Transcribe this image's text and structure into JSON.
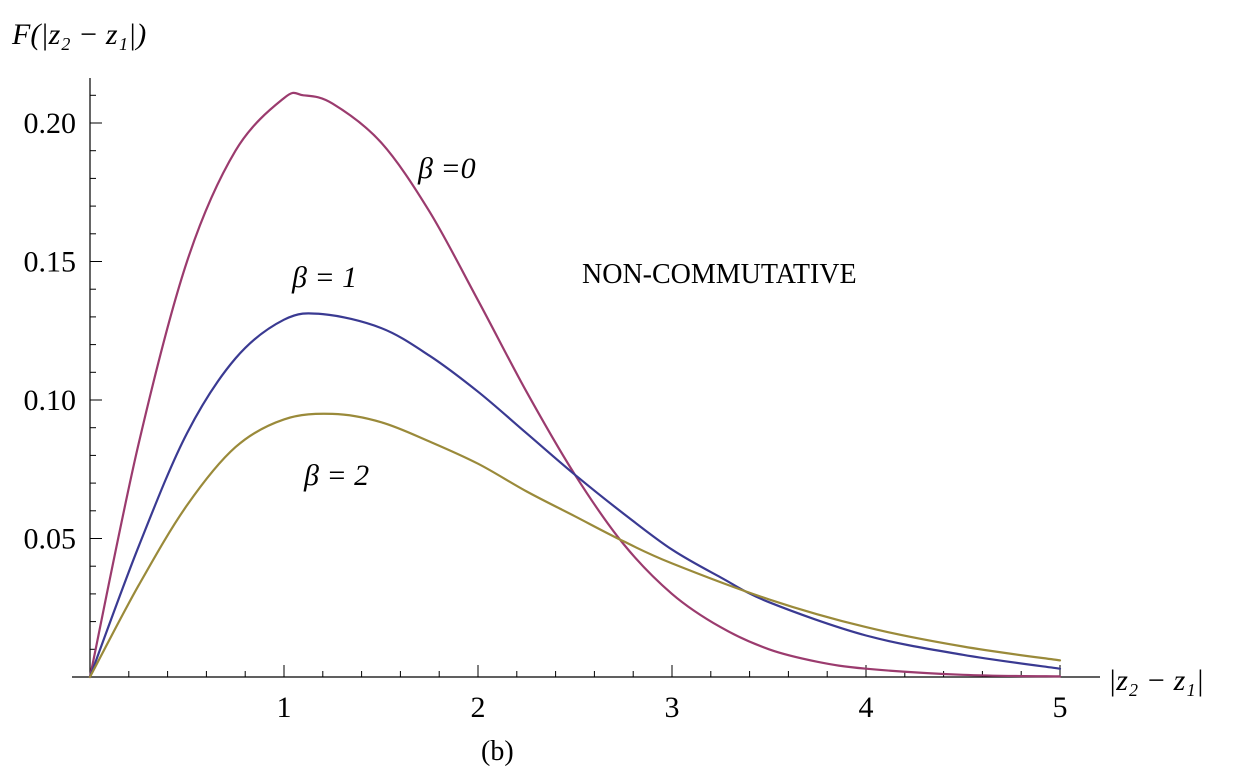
{
  "chart_data": {
    "type": "line",
    "ylabel": "F(|z₂ − z₁|)",
    "xlabel": "|z₂ − z₁|",
    "caption": "(b)",
    "annotation": "NON-COMMUTATIVE",
    "xlim": [
      0,
      5
    ],
    "ylim": [
      0,
      0.22
    ],
    "x_ticks": [
      1,
      2,
      3,
      4,
      5
    ],
    "x_tick_labels": [
      "1",
      "2",
      "3",
      "4",
      "5"
    ],
    "y_ticks": [
      0.05,
      0.1,
      0.15,
      0.2
    ],
    "y_tick_labels": [
      "0.05",
      "0.10",
      "0.15",
      "0.20"
    ],
    "grid": false,
    "series": [
      {
        "name": "β =0",
        "color": "#9b3b6e",
        "x": [
          0,
          0.25,
          0.5,
          0.75,
          1.0,
          1.1,
          1.25,
          1.5,
          1.75,
          2.0,
          2.25,
          2.5,
          2.75,
          3.0,
          3.25,
          3.5,
          3.75,
          4.0,
          4.5,
          5.0
        ],
        "y": [
          0,
          0.084,
          0.15,
          0.19,
          0.209,
          0.21,
          0.207,
          0.193,
          0.168,
          0.136,
          0.103,
          0.073,
          0.048,
          0.03,
          0.018,
          0.01,
          0.0055,
          0.003,
          0.0008,
          0.0002
        ]
      },
      {
        "name": "β = 1",
        "color": "#3a3a92",
        "x": [
          0,
          0.25,
          0.5,
          0.75,
          1.0,
          1.2,
          1.5,
          1.75,
          2.0,
          2.25,
          2.5,
          2.75,
          3.0,
          3.25,
          3.5,
          4.0,
          4.5,
          5.0
        ],
        "y": [
          0,
          0.047,
          0.088,
          0.115,
          0.129,
          0.131,
          0.126,
          0.116,
          0.103,
          0.088,
          0.073,
          0.059,
          0.046,
          0.036,
          0.027,
          0.015,
          0.008,
          0.003
        ]
      },
      {
        "name": "β = 2",
        "color": "#9a8a3a",
        "x": [
          0,
          0.25,
          0.5,
          0.75,
          1.0,
          1.25,
          1.5,
          1.75,
          2.0,
          2.25,
          2.5,
          2.75,
          3.0,
          3.5,
          4.0,
          4.5,
          5.0
        ],
        "y": [
          0,
          0.033,
          0.062,
          0.083,
          0.093,
          0.095,
          0.092,
          0.085,
          0.077,
          0.067,
          0.058,
          0.049,
          0.041,
          0.028,
          0.018,
          0.011,
          0.006
        ]
      }
    ]
  }
}
